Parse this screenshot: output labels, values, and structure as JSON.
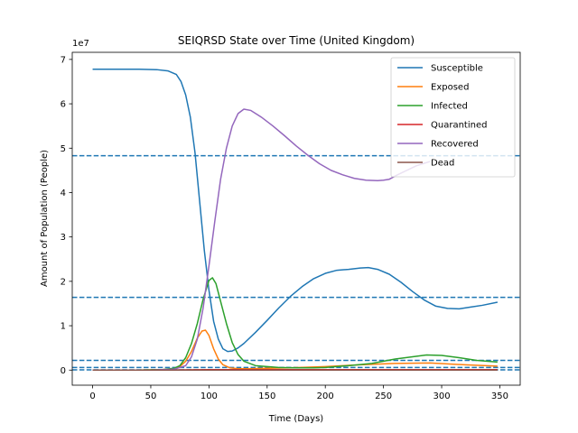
{
  "chart_data": {
    "type": "line",
    "title": "SEIQRSD State over Time (United Kingdom)",
    "xlabel": "Time (Days)",
    "ylabel": "Amount of Population (People)",
    "y_offset_label": "1e7",
    "xlim": [
      -17.5,
      367.5
    ],
    "ylim": [
      -0.34,
      7.16
    ],
    "y_multiplier": 10000000,
    "xticks": [
      0,
      50,
      100,
      150,
      200,
      250,
      300,
      350
    ],
    "yticks": [
      0,
      1,
      2,
      3,
      4,
      5,
      6,
      7
    ],
    "grid": false,
    "legend_position": "top-right",
    "series": [
      {
        "name": "Susceptible",
        "color": "#1f77b4",
        "x": [
          0,
          20,
          40,
          55,
          65,
          72,
          76,
          80,
          84,
          88,
          92,
          96,
          100,
          104,
          108,
          112,
          116,
          120,
          125,
          130,
          140,
          150,
          160,
          170,
          180,
          190,
          200,
          210,
          220,
          230,
          237,
          245,
          255,
          265,
          275,
          285,
          295,
          305,
          315,
          325,
          335,
          348
        ],
        "values": [
          6.78,
          6.78,
          6.78,
          6.77,
          6.74,
          6.66,
          6.5,
          6.2,
          5.7,
          4.9,
          3.8,
          2.7,
          1.8,
          1.1,
          0.7,
          0.48,
          0.42,
          0.43,
          0.5,
          0.6,
          0.85,
          1.12,
          1.4,
          1.66,
          1.88,
          2.06,
          2.18,
          2.25,
          2.27,
          2.3,
          2.31,
          2.27,
          2.16,
          1.98,
          1.77,
          1.58,
          1.44,
          1.39,
          1.38,
          1.42,
          1.46,
          1.53
        ]
      },
      {
        "name": "Exposed",
        "color": "#ff7f0e",
        "x": [
          0,
          40,
          60,
          70,
          75,
          80,
          85,
          90,
          94,
          97,
          100,
          104,
          108,
          112,
          118,
          125,
          135,
          150,
          170,
          200,
          230,
          260,
          290,
          320,
          348
        ],
        "values": [
          0,
          0,
          0.01,
          0.03,
          0.08,
          0.2,
          0.42,
          0.72,
          0.88,
          0.9,
          0.78,
          0.48,
          0.25,
          0.12,
          0.05,
          0.03,
          0.03,
          0.04,
          0.05,
          0.08,
          0.12,
          0.15,
          0.16,
          0.12,
          0.09
        ]
      },
      {
        "name": "Infected",
        "color": "#2ca02c",
        "x": [
          0,
          40,
          60,
          70,
          75,
          80,
          85,
          90,
          95,
          100,
          103,
          106,
          110,
          115,
          120,
          125,
          130,
          140,
          150,
          160,
          175,
          190,
          200,
          220,
          240,
          260,
          275,
          287,
          300,
          315,
          330,
          348
        ],
        "values": [
          0,
          0,
          0.01,
          0.04,
          0.1,
          0.28,
          0.6,
          1.05,
          1.6,
          2.02,
          2.08,
          1.95,
          1.55,
          1.05,
          0.62,
          0.35,
          0.2,
          0.1,
          0.08,
          0.06,
          0.05,
          0.05,
          0.06,
          0.1,
          0.15,
          0.25,
          0.3,
          0.34,
          0.33,
          0.28,
          0.22,
          0.18
        ]
      },
      {
        "name": "Quarantined",
        "color": "#d62728",
        "x": [
          0,
          50,
          100,
          150,
          200,
          250,
          300,
          348
        ],
        "values": [
          0,
          0,
          0.01,
          0.01,
          0.01,
          0.01,
          0.01,
          0.01
        ]
      },
      {
        "name": "Recovered",
        "color": "#9467bd",
        "x": [
          0,
          50,
          70,
          80,
          85,
          90,
          95,
          100,
          105,
          110,
          115,
          120,
          125,
          130,
          136,
          145,
          155,
          165,
          175,
          185,
          195,
          205,
          215,
          225,
          235,
          245,
          250,
          255,
          262,
          270,
          278,
          285,
          290
        ],
        "values": [
          0,
          0,
          0.02,
          0.1,
          0.3,
          0.7,
          1.4,
          2.35,
          3.35,
          4.3,
          5.0,
          5.5,
          5.78,
          5.88,
          5.85,
          5.7,
          5.5,
          5.28,
          5.05,
          4.84,
          4.65,
          4.5,
          4.4,
          4.32,
          4.28,
          4.27,
          4.28,
          4.3,
          4.4,
          4.5,
          4.6,
          4.66,
          4.7
        ]
      },
      {
        "name": "Dead",
        "color": "#8c564b",
        "x": [
          0,
          100,
          200,
          348
        ],
        "values": [
          0,
          0,
          0,
          0
        ]
      }
    ],
    "hlines": [
      {
        "y": 4.83,
        "color": "#1f77b4"
      },
      {
        "y": 1.64,
        "color": "#1f77b4"
      },
      {
        "y": 0.22,
        "color": "#1f77b4"
      },
      {
        "y": 0.06,
        "color": "#1f77b4"
      },
      {
        "y": 0.005,
        "color": "#1f77b4"
      }
    ]
  }
}
